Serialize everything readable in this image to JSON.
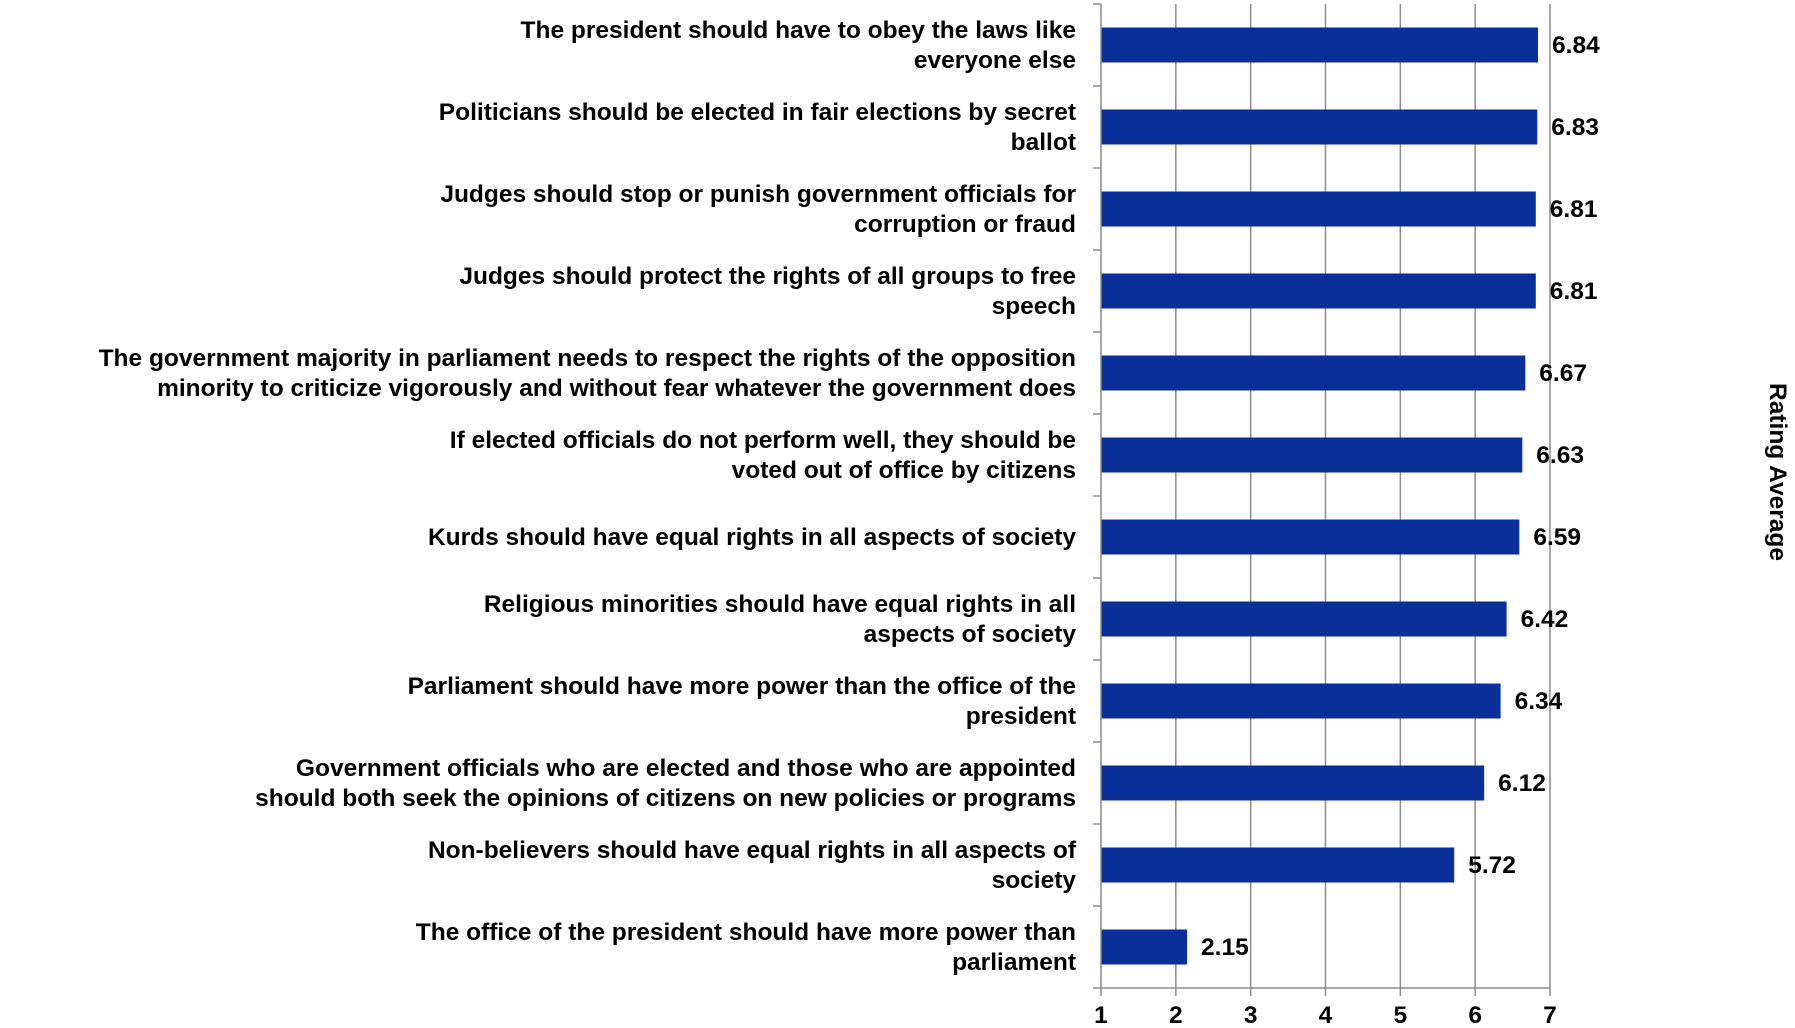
{
  "chart_data": {
    "type": "bar",
    "orientation": "horizontal",
    "ylabel": "Rating Average",
    "xlim": [
      1,
      7
    ],
    "xticks": [
      1,
      2,
      3,
      4,
      5,
      6,
      7
    ],
    "grid": true,
    "bar_color": "#0a2f99",
    "categories": [
      [
        "The president should have to obey the laws like",
        "everyone else"
      ],
      [
        "Politicians should be elected in fair elections by secret",
        "ballot"
      ],
      [
        "Judges should stop or punish government officials for",
        "corruption or fraud"
      ],
      [
        "Judges should protect the rights of all groups to free",
        "speech"
      ],
      [
        "The government majority in parliament needs to respect the rights of the opposition",
        "minority to criticize vigorously and without fear whatever the government does"
      ],
      [
        "If elected officials do not perform well, they should be",
        "voted out of office by citizens"
      ],
      [
        "Kurds should have equal rights in all aspects of society"
      ],
      [
        "Religious minorities should have equal rights in all",
        "aspects of society"
      ],
      [
        "Parliament should have more power than the office of the",
        "president"
      ],
      [
        "Government officials who are elected and those who are appointed",
        "should both seek the opinions of citizens on new policies or programs"
      ],
      [
        "Non-believers should have equal rights in all aspects of",
        "society"
      ],
      [
        "The office of the president should have more power than",
        "parliament"
      ]
    ],
    "values": [
      6.84,
      6.83,
      6.81,
      6.81,
      6.67,
      6.63,
      6.59,
      6.42,
      6.34,
      6.12,
      5.72,
      2.15
    ],
    "value_labels": [
      "6.84",
      "6.83",
      "6.81",
      "6.81",
      "6.67",
      "6.63",
      "6.59",
      "6.42",
      "6.34",
      "6.12",
      "5.72",
      "2.15"
    ]
  }
}
